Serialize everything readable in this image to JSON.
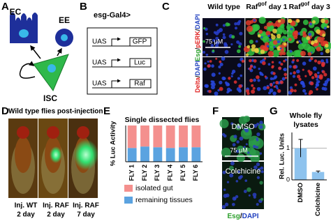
{
  "panel_labels": [
    "A",
    "B",
    "C",
    "D",
    "E",
    "F",
    "G"
  ],
  "lineage": {
    "cells": [
      "EC",
      "EE",
      "ISC"
    ]
  },
  "construct": {
    "driver": "esg-Gal4>",
    "lines": [
      {
        "promoter": "UAS",
        "gene": "GFP"
      },
      {
        "promoter": "UAS",
        "gene": "Luc"
      },
      {
        "promoter": "UAS",
        "gene": "Raf"
      }
    ]
  },
  "micrographs": {
    "columns": [
      {
        "text": "Wild type"
      },
      {
        "text": "Raf",
        "sup": "gof",
        "rest": " day 1"
      },
      {
        "text": "Raf",
        "sup": "gof",
        "rest": " day 3"
      }
    ],
    "rows": [
      [
        {
          "text": "Esg",
          "color": "#2ca02c"
        },
        {
          "text": "/",
          "color": "#000000"
        },
        {
          "text": "pERK",
          "color": "#e02020"
        },
        {
          "text": "/",
          "color": "#000000"
        },
        {
          "text": "DAPI",
          "color": "#1f3fbf"
        }
      ],
      [
        {
          "text": "Delta",
          "color": "#e02020"
        },
        {
          "text": "/",
          "color": "#000000"
        },
        {
          "text": "DAPI",
          "color": "#1f3fbf"
        }
      ]
    ],
    "scale_bar": "75 μM"
  },
  "flies": {
    "title": "Wild type flies post-injection",
    "labels": [
      [
        "Inj. WT",
        "2 day"
      ],
      [
        "Inj. RAF",
        "2 day"
      ],
      [
        "Inj. RAF",
        "7 day"
      ]
    ]
  },
  "colchicine": {
    "conditions": [
      "DMSO",
      "Colchicine"
    ],
    "scale_bar": "75 μM",
    "stain": [
      {
        "text": "Esg",
        "color": "#2ca02c"
      },
      {
        "text": "/",
        "color": "#000000"
      },
      {
        "text": "DAPI",
        "color": "#1f3fbf"
      }
    ]
  },
  "chart_data": [
    {
      "type": "stacked-bar",
      "title": "Single dissected flies",
      "y_label": "% Luc Activity",
      "categories": [
        "FLY 1",
        "FLY 2",
        "FLY 3",
        "FLY 4",
        "FLY 5",
        "FLY 6"
      ],
      "series": [
        {
          "name": "isolated gut",
          "color": "#f4908e",
          "values": [
            62,
            58,
            60,
            62,
            60,
            60
          ]
        },
        {
          "name": "remaining tissues",
          "color": "#5ba3e0",
          "values": [
            38,
            42,
            40,
            38,
            40,
            40
          ]
        }
      ],
      "ylim": [
        0,
        100
      ]
    },
    {
      "type": "bar",
      "title": [
        "Whole fly",
        "lysates"
      ],
      "y_label": "Rel. Luc. Units",
      "categories": [
        "DMSO",
        "Colchicine"
      ],
      "values": [
        1.0,
        0.25
      ],
      "errors": [
        0.28,
        0.03
      ],
      "color": "#8ec3ee",
      "ylim": [
        0,
        1.5
      ],
      "yticks": [
        0,
        1
      ],
      "grid": true
    }
  ]
}
